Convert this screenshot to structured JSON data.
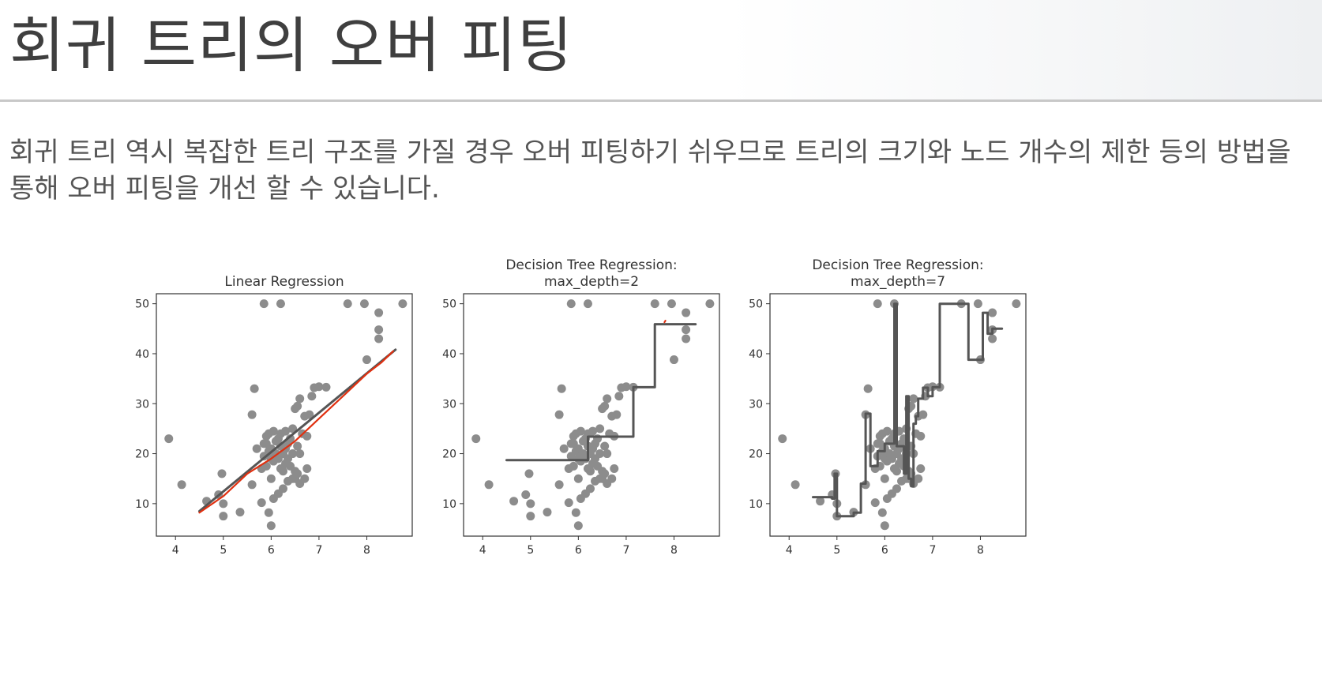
{
  "slide": {
    "title": "회귀 트리의 오버 피팅",
    "body": "회귀 트리 역시 복잡한 트리 구조를 가질 경우 오버 피팅하기 쉬우므로 트리의 크기와 노드 개수의 제한 등의 방법을 통해 오버 피팅을 개선 할 수 있습니다."
  },
  "chart_data": [
    {
      "type": "scatter",
      "title": "Linear Regression",
      "title_lines": [
        "Linear Regression"
      ],
      "xlim": [
        3.6,
        8.95
      ],
      "ylim": [
        3.5,
        52
      ],
      "xticks": [
        4,
        5,
        6,
        7,
        8
      ],
      "yticks": [
        10,
        20,
        30,
        40,
        50
      ],
      "grid": false,
      "colors": {
        "points": "#8c8c8c",
        "fit": "#555555",
        "annotation": "#e03010"
      },
      "series": [
        {
          "role": "points",
          "ref": "scatter"
        },
        {
          "role": "fit",
          "x": [
            4.5,
            8.6
          ],
          "y": [
            8.5,
            40.8
          ]
        },
        {
          "role": "annotation",
          "x": [
            4.5,
            5.0,
            5.5,
            6.0,
            6.5,
            7.0,
            7.5,
            8.0,
            8.3,
            8.55
          ],
          "y": [
            8.2,
            11.5,
            16.0,
            19.0,
            22.5,
            27.0,
            31.5,
            36.0,
            38.2,
            40.5
          ]
        }
      ]
    },
    {
      "type": "scatter",
      "title": "Decision Tree Regression: max_depth=2",
      "title_lines": [
        "Decision Tree Regression:",
        "max_depth=2"
      ],
      "xlim": [
        3.6,
        8.95
      ],
      "ylim": [
        3.5,
        52
      ],
      "xticks": [
        4,
        5,
        6,
        7,
        8
      ],
      "yticks": [
        10,
        20,
        30,
        40,
        50
      ],
      "grid": false,
      "colors": {
        "points": "#8c8c8c",
        "fit": "#555555",
        "annotation": "#e03010"
      },
      "series": [
        {
          "role": "points",
          "ref": "scatter"
        },
        {
          "role": "fit",
          "x": [
            4.5,
            6.2,
            6.2,
            7.15,
            7.15,
            7.6,
            7.6,
            8.45
          ],
          "y": [
            18.7,
            18.7,
            23.4,
            23.4,
            33.3,
            33.3,
            45.9,
            45.9
          ]
        },
        {
          "role": "annotation",
          "x": [
            7.8,
            7.82
          ],
          "y": [
            46.3,
            46.6
          ]
        }
      ]
    },
    {
      "type": "scatter",
      "title": "Decision Tree Regression: max_depth=7",
      "title_lines": [
        "Decision Tree Regression:",
        "max_depth=7"
      ],
      "xlim": [
        3.6,
        8.95
      ],
      "ylim": [
        3.5,
        52
      ],
      "xticks": [
        4,
        5,
        6,
        7,
        8
      ],
      "yticks": [
        10,
        20,
        30,
        40,
        50
      ],
      "grid": false,
      "colors": {
        "points": "#8c8c8c",
        "fit": "#555555"
      },
      "series": [
        {
          "role": "points",
          "ref": "scatter"
        },
        {
          "role": "fit",
          "x": [
            4.5,
            4.9,
            4.9,
            4.95,
            4.95,
            5.0,
            5.0,
            5.35,
            5.35,
            5.5,
            5.5,
            5.6,
            5.6,
            5.7,
            5.7,
            5.85,
            5.85,
            6.0,
            6.0,
            6.2,
            6.2,
            6.25,
            6.25,
            6.4,
            6.4,
            6.45,
            6.45,
            6.5,
            6.5,
            6.55,
            6.55,
            6.6,
            6.6,
            6.65,
            6.65,
            6.7,
            6.7,
            6.8,
            6.8,
            6.9,
            6.9,
            7.0,
            7.0,
            7.15,
            7.15,
            7.5,
            7.5,
            7.75,
            7.75,
            7.9,
            7.9,
            8.05,
            8.05,
            8.15,
            8.15,
            8.25,
            8.25,
            8.45
          ],
          "y": [
            11.3,
            11.3,
            11.0,
            11.0,
            16.0,
            16.0,
            7.5,
            7.5,
            8.2,
            8.2,
            14.0,
            14.0,
            28.0,
            28.0,
            17.5,
            17.5,
            20.5,
            20.5,
            22.0,
            22.0,
            50.0,
            50.0,
            21.5,
            21.5,
            16.0,
            16.0,
            31.5,
            31.5,
            15.0,
            15.0,
            13.5,
            13.5,
            26.0,
            26.0,
            27.5,
            27.5,
            31.0,
            31.0,
            33.2,
            33.2,
            31.5,
            31.5,
            33.3,
            33.3,
            50.0,
            50.0,
            50.0,
            50.0,
            38.8,
            38.8,
            38.8,
            38.8,
            48.2,
            48.2,
            44.0,
            44.0,
            45.0,
            45.0
          ]
        }
      ]
    }
  ],
  "scatter": {
    "x": [
      3.86,
      4.13,
      4.65,
      4.9,
      4.97,
      5.0,
      5.0,
      5.35,
      5.6,
      5.6,
      5.7,
      5.8,
      5.85,
      5.85,
      5.9,
      5.9,
      5.95,
      5.95,
      6.0,
      6.0,
      6.0,
      6.05,
      6.05,
      6.1,
      6.1,
      6.15,
      6.15,
      6.2,
      6.2,
      6.2,
      6.25,
      6.25,
      6.3,
      6.3,
      6.35,
      6.35,
      6.4,
      6.4,
      6.45,
      6.45,
      6.5,
      6.5,
      6.55,
      6.55,
      6.6,
      6.6,
      6.65,
      6.7,
      6.7,
      6.75,
      6.8,
      6.85,
      6.9,
      7.0,
      5.8,
      5.95,
      6.05,
      6.25,
      6.35,
      6.5,
      6.6,
      6.3,
      6.45,
      6.55,
      6.75,
      5.9,
      6.0,
      6.15,
      5.65,
      7.15,
      7.6,
      7.95,
      8.25,
      8.25,
      8.75,
      8.0
    ],
    "y": [
      23.0,
      13.8,
      10.5,
      11.8,
      16.0,
      7.5,
      10.0,
      8.3,
      13.8,
      27.8,
      21.0,
      17.0,
      19.5,
      22.0,
      23.5,
      17.5,
      20.5,
      24.0,
      21.0,
      19.0,
      15.0,
      18.5,
      24.5,
      20.0,
      22.5,
      23.0,
      19.0,
      21.5,
      24.0,
      17.0,
      20.0,
      16.5,
      21.0,
      24.5,
      19.0,
      22.0,
      17.5,
      23.0,
      25.0,
      15.0,
      16.5,
      29.0,
      29.5,
      21.5,
      31.0,
      20.0,
      24.0,
      27.5,
      15.0,
      23.5,
      27.8,
      31.5,
      33.2,
      33.4,
      10.2,
      8.2,
      11.0,
      13.0,
      14.5,
      15.0,
      14.0,
      18.0,
      20.0,
      16.0,
      17.0,
      22.0,
      5.6,
      12.0,
      33.0,
      33.3,
      50.0,
      50.0,
      44.8,
      48.2,
      50.0,
      38.8
    ],
    "x_extra": [
      5.85,
      6.2
    ],
    "y_extra": [
      50.0,
      50.0
    ],
    "x_more": [
      8.25
    ],
    "y_more": [
      43.0
    ]
  }
}
